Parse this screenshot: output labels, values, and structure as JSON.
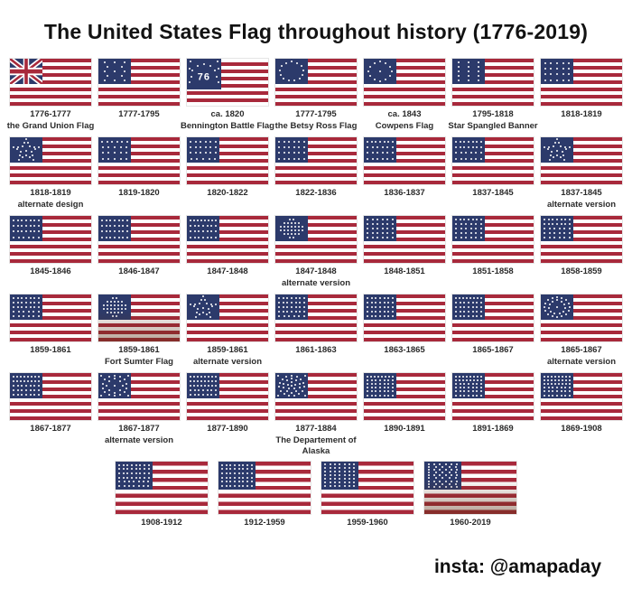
{
  "title": "The United States Flag throughout history (1776-2019)",
  "credit": "insta: @amapaday",
  "colors": {
    "red": "#A8293B",
    "blue": "#2C3A6B",
    "star_white": "#FFFFFF",
    "background": "#FFFFFF",
    "caption_text": "#2B2B2B",
    "title_text": "#121212"
  },
  "rows": [
    [
      {
        "years": "1776-1777",
        "name": "the Grand Union Flag",
        "pattern": "union-jack"
      },
      {
        "years": "1777-1795",
        "pattern": "rows",
        "star_rows": [
          3,
          2,
          3,
          2,
          3
        ]
      },
      {
        "years": "ca. 1820",
        "name": "Bennington Battle Flag",
        "pattern": "bennington",
        "label": "76"
      },
      {
        "years": "1777-1795",
        "name": "the Betsy Ross Flag",
        "pattern": "circle",
        "ring": 13
      },
      {
        "years": "ca. 1843",
        "name": "Cowpens Flag",
        "pattern": "circle",
        "ring": 12,
        "center": true
      },
      {
        "years": "1795-1818",
        "name": "Star Spangled Banner",
        "pattern": "rows",
        "star_rows": [
          3,
          3,
          3,
          3,
          3
        ]
      },
      {
        "years": "1818-1819",
        "pattern": "rows",
        "star_rows": [
          5,
          5,
          5,
          5
        ]
      }
    ],
    [
      {
        "years": "1818-1819",
        "name": "alternate design",
        "pattern": "great-star"
      },
      {
        "years": "1819-1820",
        "pattern": "rows",
        "star_rows": [
          6,
          5,
          5,
          5
        ]
      },
      {
        "years": "1820-1822",
        "pattern": "rows",
        "star_rows": [
          6,
          6,
          6,
          5
        ]
      },
      {
        "years": "1822-1836",
        "pattern": "rows",
        "star_rows": [
          6,
          6,
          6,
          6
        ]
      },
      {
        "years": "1836-1837",
        "pattern": "rows",
        "star_rows": [
          7,
          6,
          6,
          6
        ]
      },
      {
        "years": "1837-1845",
        "pattern": "rows",
        "star_rows": [
          7,
          7,
          6,
          6
        ]
      },
      {
        "years": "1837-1845",
        "name": "alternate version",
        "pattern": "great-star"
      }
    ],
    [
      {
        "years": "1845-1846",
        "pattern": "rows",
        "star_rows": [
          7,
          7,
          7,
          6
        ]
      },
      {
        "years": "1846-1847",
        "pattern": "rows",
        "star_rows": [
          7,
          7,
          7,
          7
        ]
      },
      {
        "years": "1847-1848",
        "pattern": "rows",
        "star_rows": [
          8,
          7,
          7,
          7
        ]
      },
      {
        "years": "1847-1848",
        "name": "alternate version",
        "pattern": "diamond",
        "star_rows": [
          2,
          5,
          7,
          7,
          5,
          2
        ]
      },
      {
        "years": "1848-1851",
        "pattern": "rows",
        "star_rows": [
          6,
          6,
          6,
          6,
          6
        ]
      },
      {
        "years": "1851-1858",
        "pattern": "rows",
        "star_rows": [
          7,
          6,
          6,
          6,
          6
        ]
      },
      {
        "years": "1858-1859",
        "pattern": "rows",
        "star_rows": [
          7,
          7,
          6,
          6,
          6
        ]
      }
    ],
    [
      {
        "years": "1859-1861",
        "pattern": "rows",
        "star_rows": [
          7,
          7,
          7,
          6,
          6
        ]
      },
      {
        "years": "1859-1861",
        "name": "Fort Sumter Flag",
        "pattern": "diamond",
        "star_rows": [
          2,
          5,
          7,
          7,
          5,
          2
        ],
        "aged": true
      },
      {
        "years": "1859-1861",
        "name": "alternate version",
        "pattern": "great-star"
      },
      {
        "years": "1861-1863",
        "pattern": "rows",
        "star_rows": [
          7,
          7,
          7,
          7,
          6
        ]
      },
      {
        "years": "1863-1865",
        "pattern": "rows",
        "star_rows": [
          7,
          7,
          7,
          7,
          7
        ]
      },
      {
        "years": "1865-1867",
        "pattern": "rows",
        "star_rows": [
          8,
          7,
          7,
          7,
          7
        ]
      },
      {
        "years": "1865-1867",
        "name": "alternate version",
        "pattern": "medallion",
        "rings": [
          16,
          11
        ],
        "center": true
      }
    ],
    [
      {
        "years": "1867-1877",
        "pattern": "rows",
        "star_rows": [
          8,
          8,
          7,
          7,
          7
        ]
      },
      {
        "years": "1867-1877",
        "name": "alternate version",
        "pattern": "medallion",
        "rings": [
          14,
          8
        ],
        "center": true,
        "corners": true
      },
      {
        "years": "1877-1890",
        "pattern": "rows",
        "star_rows": [
          8,
          8,
          8,
          7,
          7
        ]
      },
      {
        "years": "1877-1884",
        "name": "The Departement of Alaska",
        "pattern": "medallion",
        "rings": [
          15,
          10,
          5
        ],
        "center": true,
        "corners": true
      },
      {
        "years": "1890-1891",
        "pattern": "rows",
        "star_rows": [
          8,
          7,
          7,
          7,
          7,
          7
        ]
      },
      {
        "years": "1891-1869",
        "pattern": "rows",
        "star_rows": [
          8,
          8,
          7,
          7,
          7,
          7
        ]
      },
      {
        "years": "1869-1908",
        "pattern": "rows",
        "star_rows": [
          8,
          8,
          8,
          7,
          7,
          7
        ]
      }
    ],
    [
      {
        "years": "1908-1912",
        "pattern": "rows",
        "star_rows": [
          8,
          8,
          8,
          8,
          7,
          7
        ]
      },
      {
        "years": "1912-1959",
        "pattern": "rows",
        "star_rows": [
          8,
          8,
          8,
          8,
          8,
          8
        ]
      },
      {
        "years": "1959-1960",
        "pattern": "rows",
        "star_rows": [
          7,
          7,
          7,
          7,
          7,
          7,
          7
        ]
      },
      {
        "years": "1960-2019",
        "pattern": "rows",
        "star_rows": [
          6,
          5,
          6,
          5,
          6,
          5,
          6,
          5,
          6
        ],
        "aged": true
      }
    ]
  ]
}
